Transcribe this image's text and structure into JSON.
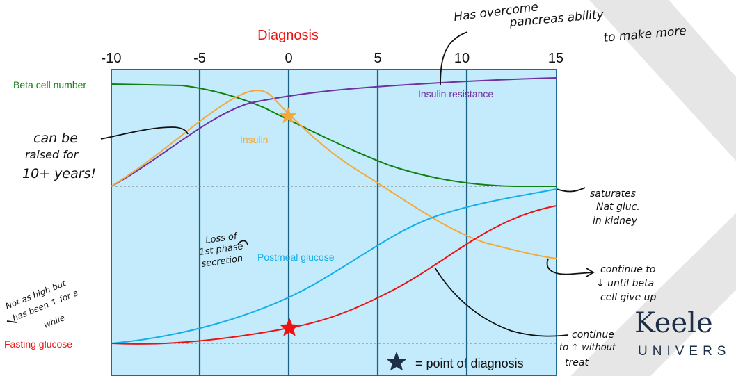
{
  "header": {
    "title": "Diagnosis"
  },
  "axis": {
    "ticks": [
      "-10",
      "-5",
      "0",
      "5",
      "10",
      "15"
    ]
  },
  "curves": {
    "beta_cell": {
      "label": "Beta cell number",
      "color": "#118011"
    },
    "insulin_resistance": {
      "label": "Insulin resistance",
      "color": "#7030a0"
    },
    "insulin": {
      "label": "Insulin",
      "color": "#f4a83a"
    },
    "postmeal_glucose": {
      "label": "Postmeal glucose",
      "color": "#14aee8"
    },
    "fasting_glucose": {
      "label": "Fasting glucose",
      "color": "#ee1111"
    }
  },
  "colors": {
    "panel_fill": "#c3ebfb",
    "panel_border": "#1a6e96",
    "gridline": "#1a5f86",
    "star_diagnosis": "#1e3048",
    "ink": "#111111"
  },
  "legend": {
    "text": "= point of diagnosis"
  },
  "annotations": {
    "top_1": "Has overcome",
    "top_2": "pancreas ability",
    "top_3": "to make more",
    "left_1": "can be",
    "left_2": "raised for",
    "left_3": "10+ years!",
    "mid_1": "Loss of",
    "mid_2": "1st phase",
    "mid_3": "secretion",
    "bottom_1": "Not as high but",
    "bottom_2": "has been ↑ for a",
    "bottom_3": "while",
    "right_sat_1": "saturates",
    "right_sat_2": "Nat gluc.",
    "right_sat_3": "in kidney",
    "right_cont_1": "continue to",
    "right_cont_2": "↓ until beta",
    "right_cont_3": "cell give up",
    "right_treat_1": "continue",
    "right_treat_2": "to ↑ without",
    "right_treat_3": "treat"
  },
  "logo": {
    "line1": "Keele",
    "line2": "UNIVERS"
  }
}
